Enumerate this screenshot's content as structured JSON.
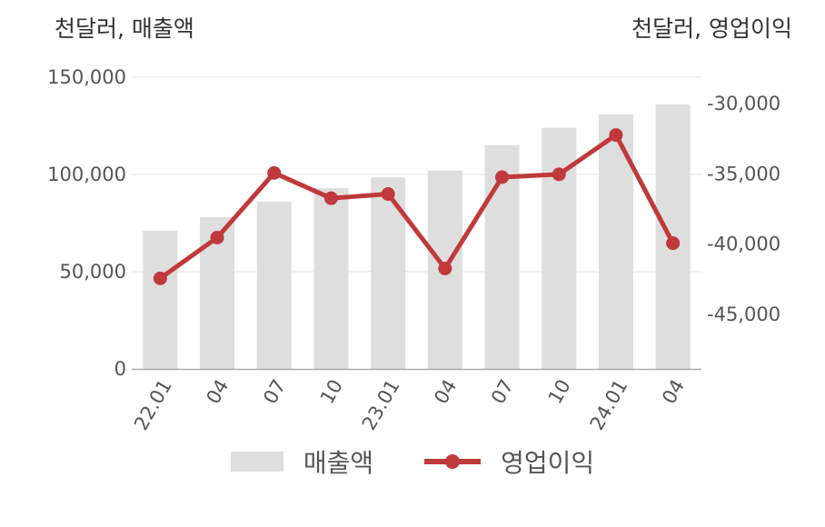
{
  "units": {
    "left": "천달러, 매출액",
    "right": "천달러, 영업이익"
  },
  "legend": {
    "bar": "매출액",
    "line": "영업이익"
  },
  "colors": {
    "bar": "#dedede",
    "line": "#c0393b",
    "grid": "#e6e6e6",
    "axis": "#aaaaaa"
  },
  "chart_data": {
    "type": "bar+line",
    "categories": [
      "22.01",
      "04",
      "07",
      "10",
      "23.01",
      "04",
      "07",
      "10",
      "24.01",
      "04"
    ],
    "series": [
      {
        "name": "매출액",
        "type": "bar",
        "axis": "left",
        "values": [
          71000,
          78000,
          86000,
          93000,
          98500,
          102000,
          115000,
          124000,
          131000,
          136000
        ]
      },
      {
        "name": "영업이익",
        "type": "line",
        "axis": "right",
        "values": [
          -42500,
          -39600,
          -35000,
          -36800,
          -36500,
          -41800,
          -35300,
          -35100,
          -32300,
          -40000
        ]
      }
    ],
    "left_axis": {
      "ticks": [
        0,
        50000,
        100000,
        150000
      ],
      "tick_labels": [
        "0",
        "50,000",
        "100,000",
        "150,000"
      ],
      "ylim": [
        0,
        150000
      ]
    },
    "right_axis": {
      "ticks": [
        -30000,
        -35000,
        -40000,
        -45000
      ],
      "tick_labels": [
        "-30,000",
        "-35,000",
        "-40,000",
        "-45,000"
      ]
    },
    "grid": true,
    "legend_position": "bottom"
  }
}
